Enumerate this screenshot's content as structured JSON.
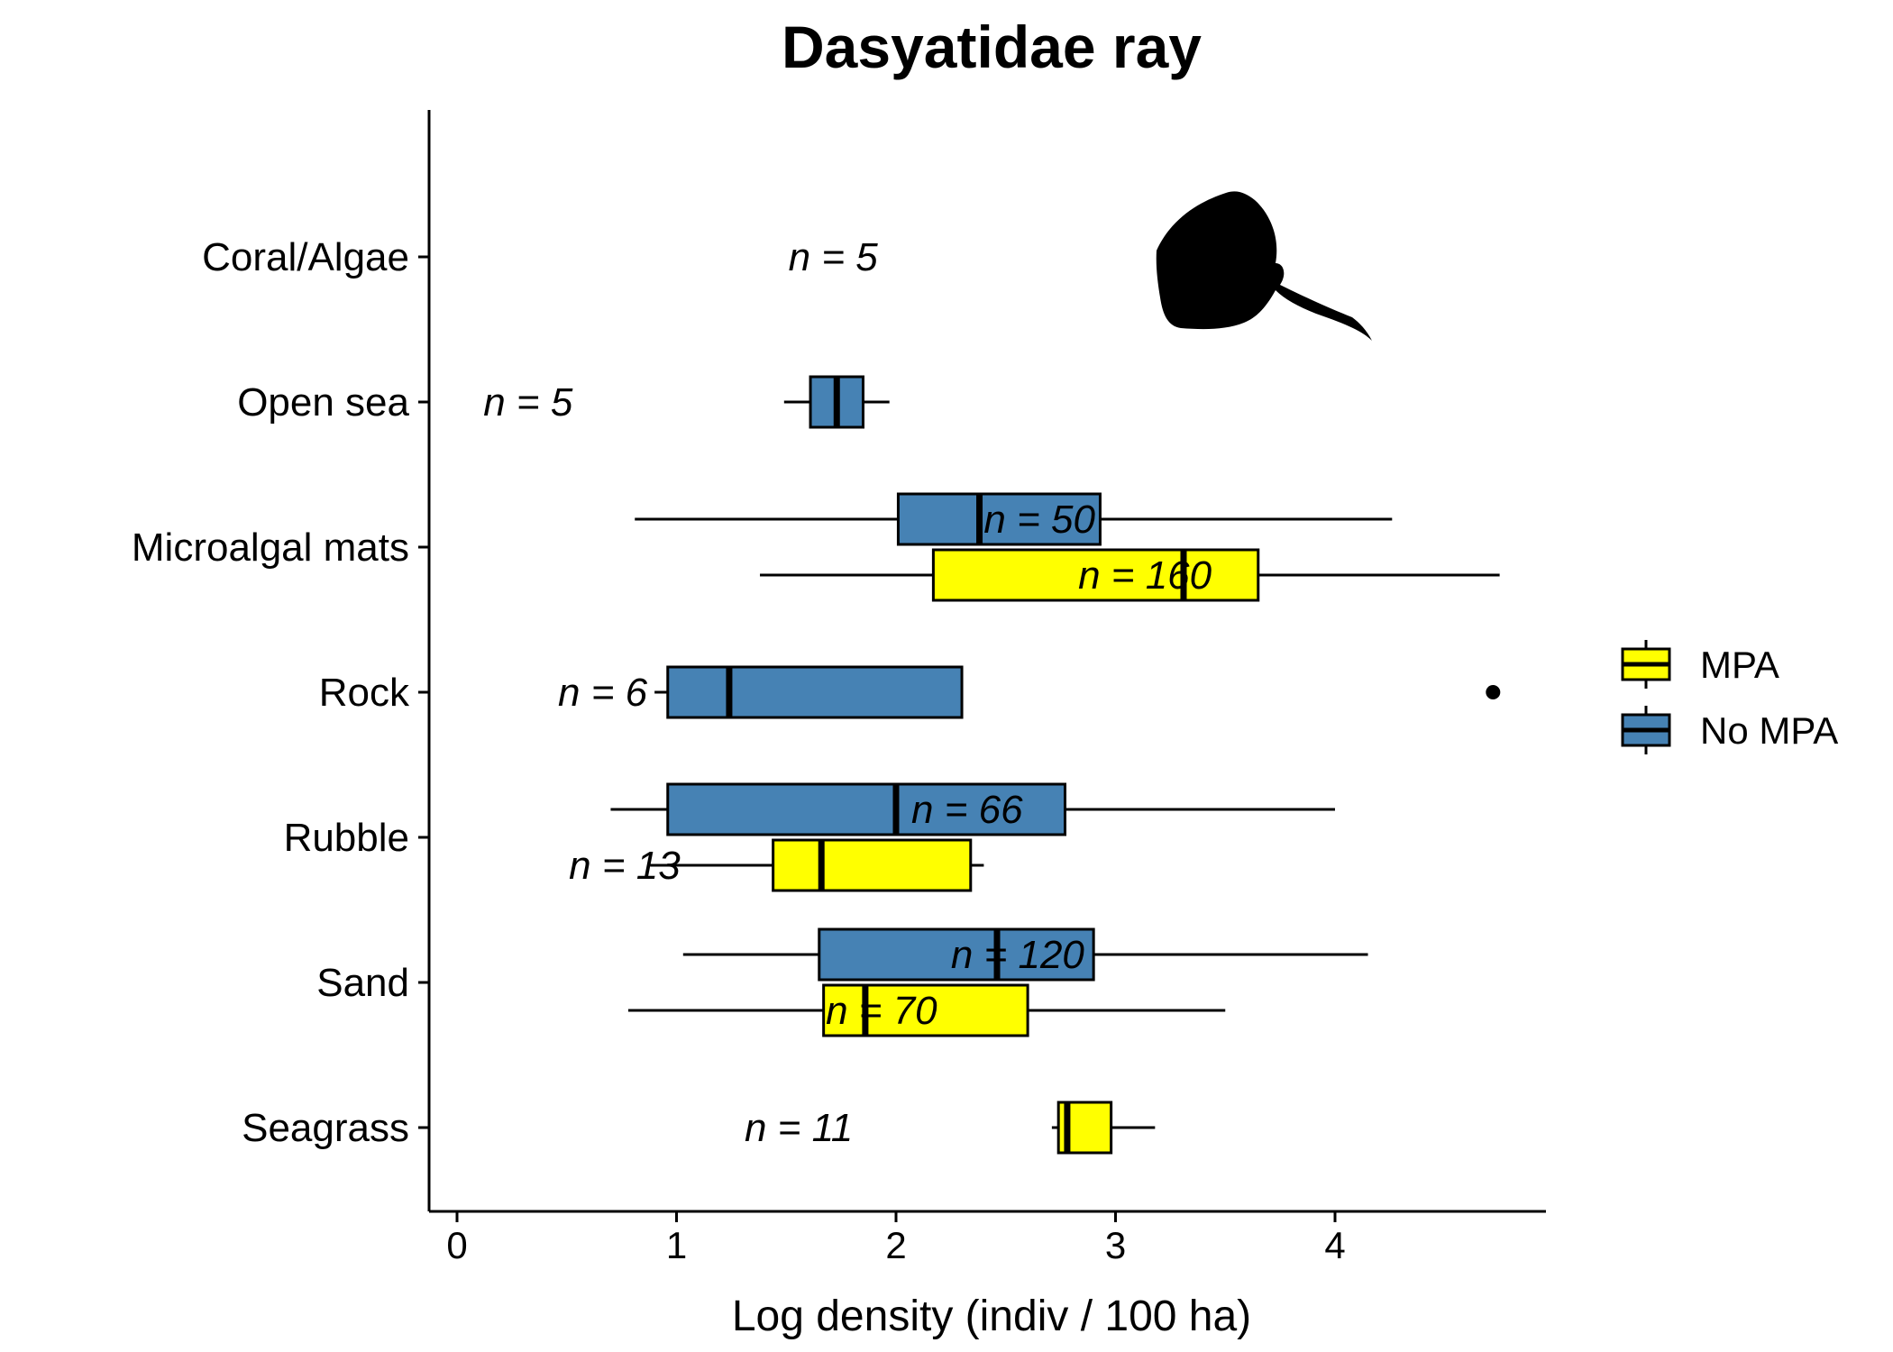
{
  "chart_data": {
    "type": "boxplot",
    "orientation": "horizontal",
    "title": "Dasyatidae ray",
    "xlabel": "Log density (indiv / 100 ha)",
    "ylabel": "",
    "xlim": [
      -0.13,
      4.97
    ],
    "x_ticks": [
      0,
      1,
      2,
      3,
      4
    ],
    "categories": [
      "Coral/Algae",
      "Open sea",
      "Microalgal mats",
      "Rock",
      "Rubble",
      "Sand",
      "Seagrass"
    ],
    "legend": {
      "placement": "right",
      "items": [
        {
          "name": "MPA",
          "color": "#FFFF00"
        },
        {
          "name": "No MPA",
          "color": "#4682B4"
        }
      ]
    },
    "series": [
      {
        "name": "No MPA",
        "color": "#4682B4",
        "boxes": [
          {
            "category": "Open sea",
            "whisker_low": 1.49,
            "q1": 1.61,
            "median": 1.73,
            "q3": 1.85,
            "whisker_high": 1.97,
            "outliers": []
          },
          {
            "category": "Microalgal mats",
            "whisker_low": 0.81,
            "q1": 2.01,
            "median": 2.38,
            "q3": 2.93,
            "whisker_high": 4.26,
            "outliers": []
          },
          {
            "category": "Rock",
            "whisker_low": 0.9,
            "q1": 0.96,
            "median": 1.24,
            "q3": 2.3,
            "whisker_high": 2.3,
            "outliers": [
              4.72
            ]
          },
          {
            "category": "Rubble",
            "whisker_low": 0.7,
            "q1": 0.96,
            "median": 2.0,
            "q3": 2.77,
            "whisker_high": 4.0,
            "outliers": []
          },
          {
            "category": "Sand",
            "whisker_low": 1.03,
            "q1": 1.65,
            "median": 2.46,
            "q3": 2.9,
            "whisker_high": 4.15,
            "outliers": []
          }
        ]
      },
      {
        "name": "MPA",
        "color": "#FFFF00",
        "boxes": [
          {
            "category": "Microalgal mats",
            "whisker_low": 1.38,
            "q1": 2.17,
            "median": 3.31,
            "q3": 3.65,
            "whisker_high": 4.75,
            "outliers": []
          },
          {
            "category": "Rubble",
            "whisker_low": 0.88,
            "q1": 1.44,
            "median": 1.66,
            "q3": 2.34,
            "whisker_high": 2.4,
            "outliers": []
          },
          {
            "category": "Sand",
            "whisker_low": 0.78,
            "q1": 1.67,
            "median": 1.86,
            "q3": 2.6,
            "whisker_high": 3.5,
            "outliers": []
          },
          {
            "category": "Seagrass",
            "whisker_low": 2.71,
            "q1": 2.74,
            "median": 2.78,
            "q3": 2.98,
            "whisker_high": 3.18,
            "outliers": []
          }
        ]
      }
    ],
    "annotations": [
      {
        "category": "Coral/Algae",
        "text": "n = 5",
        "x": 1.51,
        "slot": "center"
      },
      {
        "category": "Open sea",
        "text": "n = 5",
        "x": 0.12,
        "slot": "center"
      },
      {
        "category": "Microalgal mats",
        "text": "n = 50",
        "x": 2.4,
        "slot": "No MPA"
      },
      {
        "category": "Microalgal mats",
        "text": "n = 160",
        "x": 2.83,
        "slot": "MPA"
      },
      {
        "category": "Rock",
        "text": "n = 6",
        "x": 0.46,
        "slot": "center"
      },
      {
        "category": "Rubble",
        "text": "n = 66",
        "x": 2.07,
        "slot": "No MPA"
      },
      {
        "category": "Rubble",
        "text": "n = 13",
        "x": 0.51,
        "slot": "MPA"
      },
      {
        "category": "Sand",
        "text": "n = 120",
        "x": 2.25,
        "slot": "No MPA"
      },
      {
        "category": "Sand",
        "text": "n = 70",
        "x": 1.68,
        "slot": "MPA"
      },
      {
        "category": "Seagrass",
        "text": "n = 11",
        "x": 1.31,
        "slot": "center"
      }
    ],
    "grid": false,
    "silhouette": "stingray-icon"
  }
}
